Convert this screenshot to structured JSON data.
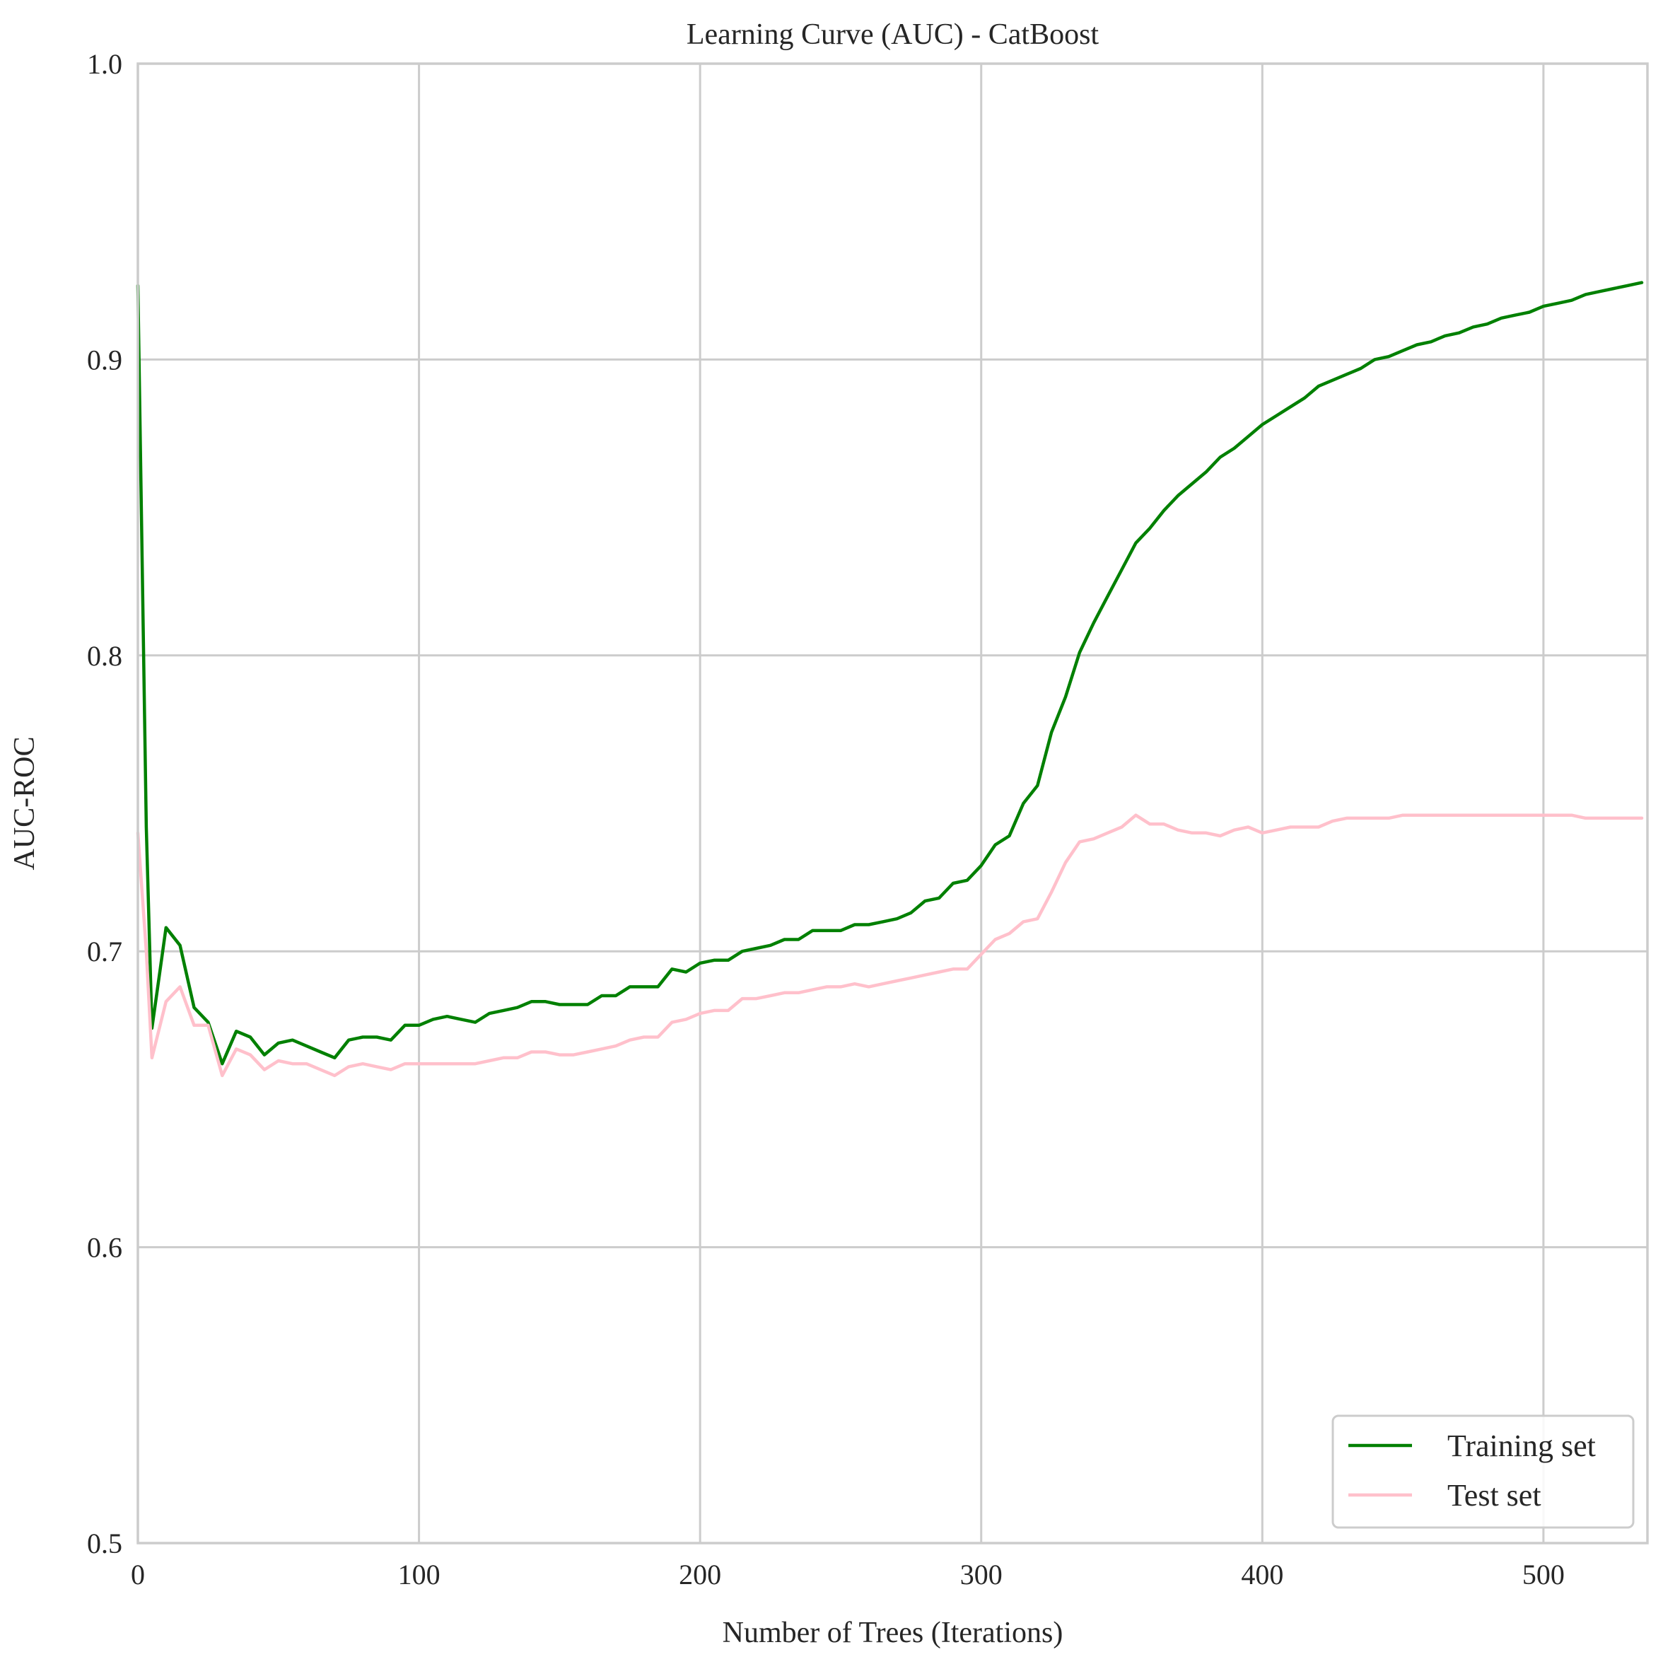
{
  "chart_data": {
    "type": "line",
    "title": "Learning Curve (AUC) - CatBoost",
    "xlabel": "Number of Trees (Iterations)",
    "ylabel": "AUC-ROC",
    "xlim": [
      0,
      537
    ],
    "ylim": [
      0.5,
      1.0
    ],
    "x_ticks": [
      0,
      100,
      200,
      300,
      400,
      500
    ],
    "y_ticks": [
      0.5,
      0.6,
      0.7,
      0.8,
      0.9,
      1.0
    ],
    "x_tick_labels": [
      "0",
      "100",
      "200",
      "300",
      "400",
      "500"
    ],
    "y_tick_labels": [
      "0.5",
      "0.6",
      "0.7",
      "0.8",
      "0.9",
      "1.0"
    ],
    "grid": true,
    "legend_position": "lower-right",
    "series": [
      {
        "name": "Training set",
        "color": "#008000",
        "points": [
          [
            0,
            0.925
          ],
          [
            3,
            0.742
          ],
          [
            5,
            0.674
          ],
          [
            10,
            0.708
          ],
          [
            15,
            0.702
          ],
          [
            20,
            0.681
          ],
          [
            25,
            0.676
          ],
          [
            30,
            0.662
          ],
          [
            35,
            0.673
          ],
          [
            40,
            0.671
          ],
          [
            45,
            0.665
          ],
          [
            50,
            0.669
          ],
          [
            55,
            0.67
          ],
          [
            60,
            0.668
          ],
          [
            65,
            0.666
          ],
          [
            70,
            0.664
          ],
          [
            75,
            0.67
          ],
          [
            80,
            0.671
          ],
          [
            85,
            0.671
          ],
          [
            90,
            0.67
          ],
          [
            95,
            0.675
          ],
          [
            100,
            0.675
          ],
          [
            105,
            0.677
          ],
          [
            110,
            0.678
          ],
          [
            115,
            0.677
          ],
          [
            120,
            0.676
          ],
          [
            125,
            0.679
          ],
          [
            130,
            0.68
          ],
          [
            135,
            0.681
          ],
          [
            140,
            0.683
          ],
          [
            145,
            0.683
          ],
          [
            150,
            0.682
          ],
          [
            155,
            0.682
          ],
          [
            160,
            0.682
          ],
          [
            165,
            0.685
          ],
          [
            170,
            0.685
          ],
          [
            175,
            0.688
          ],
          [
            180,
            0.688
          ],
          [
            185,
            0.688
          ],
          [
            190,
            0.694
          ],
          [
            195,
            0.693
          ],
          [
            200,
            0.696
          ],
          [
            205,
            0.697
          ],
          [
            210,
            0.697
          ],
          [
            215,
            0.7
          ],
          [
            220,
            0.701
          ],
          [
            225,
            0.702
          ],
          [
            230,
            0.704
          ],
          [
            235,
            0.704
          ],
          [
            240,
            0.707
          ],
          [
            245,
            0.707
          ],
          [
            250,
            0.707
          ],
          [
            255,
            0.709
          ],
          [
            260,
            0.709
          ],
          [
            265,
            0.71
          ],
          [
            270,
            0.711
          ],
          [
            275,
            0.713
          ],
          [
            280,
            0.717
          ],
          [
            285,
            0.718
          ],
          [
            290,
            0.723
          ],
          [
            295,
            0.724
          ],
          [
            300,
            0.729
          ],
          [
            305,
            0.736
          ],
          [
            310,
            0.739
          ],
          [
            315,
            0.75
          ],
          [
            320,
            0.756
          ],
          [
            325,
            0.774
          ],
          [
            330,
            0.786
          ],
          [
            335,
            0.801
          ],
          [
            340,
            0.811
          ],
          [
            345,
            0.82
          ],
          [
            350,
            0.829
          ],
          [
            355,
            0.838
          ],
          [
            360,
            0.843
          ],
          [
            365,
            0.849
          ],
          [
            370,
            0.854
          ],
          [
            375,
            0.858
          ],
          [
            380,
            0.862
          ],
          [
            385,
            0.867
          ],
          [
            390,
            0.87
          ],
          [
            395,
            0.874
          ],
          [
            400,
            0.878
          ],
          [
            405,
            0.881
          ],
          [
            410,
            0.884
          ],
          [
            415,
            0.887
          ],
          [
            420,
            0.891
          ],
          [
            425,
            0.893
          ],
          [
            430,
            0.895
          ],
          [
            435,
            0.897
          ],
          [
            440,
            0.9
          ],
          [
            445,
            0.901
          ],
          [
            450,
            0.903
          ],
          [
            455,
            0.905
          ],
          [
            460,
            0.906
          ],
          [
            465,
            0.908
          ],
          [
            470,
            0.909
          ],
          [
            475,
            0.911
          ],
          [
            480,
            0.912
          ],
          [
            485,
            0.914
          ],
          [
            490,
            0.915
          ],
          [
            495,
            0.916
          ],
          [
            500,
            0.918
          ],
          [
            505,
            0.919
          ],
          [
            510,
            0.92
          ],
          [
            515,
            0.922
          ],
          [
            520,
            0.923
          ],
          [
            525,
            0.924
          ],
          [
            530,
            0.925
          ],
          [
            535,
            0.926
          ]
        ]
      },
      {
        "name": "Test set",
        "color": "#ffc0cb",
        "points": [
          [
            0,
            0.74
          ],
          [
            3,
            0.7
          ],
          [
            5,
            0.664
          ],
          [
            10,
            0.683
          ],
          [
            15,
            0.688
          ],
          [
            20,
            0.675
          ],
          [
            25,
            0.675
          ],
          [
            30,
            0.658
          ],
          [
            35,
            0.667
          ],
          [
            40,
            0.665
          ],
          [
            45,
            0.66
          ],
          [
            50,
            0.663
          ],
          [
            55,
            0.662
          ],
          [
            60,
            0.662
          ],
          [
            65,
            0.66
          ],
          [
            70,
            0.658
          ],
          [
            75,
            0.661
          ],
          [
            80,
            0.662
          ],
          [
            85,
            0.661
          ],
          [
            90,
            0.66
          ],
          [
            95,
            0.662
          ],
          [
            100,
            0.662
          ],
          [
            105,
            0.662
          ],
          [
            110,
            0.662
          ],
          [
            115,
            0.662
          ],
          [
            120,
            0.662
          ],
          [
            125,
            0.663
          ],
          [
            130,
            0.664
          ],
          [
            135,
            0.664
          ],
          [
            140,
            0.666
          ],
          [
            145,
            0.666
          ],
          [
            150,
            0.665
          ],
          [
            155,
            0.665
          ],
          [
            160,
            0.666
          ],
          [
            165,
            0.667
          ],
          [
            170,
            0.668
          ],
          [
            175,
            0.67
          ],
          [
            180,
            0.671
          ],
          [
            185,
            0.671
          ],
          [
            190,
            0.676
          ],
          [
            195,
            0.677
          ],
          [
            200,
            0.679
          ],
          [
            205,
            0.68
          ],
          [
            210,
            0.68
          ],
          [
            215,
            0.684
          ],
          [
            220,
            0.684
          ],
          [
            225,
            0.685
          ],
          [
            230,
            0.686
          ],
          [
            235,
            0.686
          ],
          [
            240,
            0.687
          ],
          [
            245,
            0.688
          ],
          [
            250,
            0.688
          ],
          [
            255,
            0.689
          ],
          [
            260,
            0.688
          ],
          [
            265,
            0.689
          ],
          [
            270,
            0.69
          ],
          [
            275,
            0.691
          ],
          [
            280,
            0.692
          ],
          [
            285,
            0.693
          ],
          [
            290,
            0.694
          ],
          [
            295,
            0.694
          ],
          [
            300,
            0.699
          ],
          [
            305,
            0.704
          ],
          [
            310,
            0.706
          ],
          [
            315,
            0.71
          ],
          [
            320,
            0.711
          ],
          [
            325,
            0.72
          ],
          [
            330,
            0.73
          ],
          [
            335,
            0.737
          ],
          [
            340,
            0.738
          ],
          [
            345,
            0.74
          ],
          [
            350,
            0.742
          ],
          [
            355,
            0.746
          ],
          [
            360,
            0.743
          ],
          [
            365,
            0.743
          ],
          [
            370,
            0.741
          ],
          [
            375,
            0.74
          ],
          [
            380,
            0.74
          ],
          [
            385,
            0.739
          ],
          [
            390,
            0.741
          ],
          [
            395,
            0.742
          ],
          [
            400,
            0.74
          ],
          [
            405,
            0.741
          ],
          [
            410,
            0.742
          ],
          [
            415,
            0.742
          ],
          [
            420,
            0.742
          ],
          [
            425,
            0.744
          ],
          [
            430,
            0.745
          ],
          [
            435,
            0.745
          ],
          [
            440,
            0.745
          ],
          [
            445,
            0.745
          ],
          [
            450,
            0.746
          ],
          [
            455,
            0.746
          ],
          [
            460,
            0.746
          ],
          [
            465,
            0.746
          ],
          [
            470,
            0.746
          ],
          [
            475,
            0.746
          ],
          [
            480,
            0.746
          ],
          [
            485,
            0.746
          ],
          [
            490,
            0.746
          ],
          [
            495,
            0.746
          ],
          [
            500,
            0.746
          ],
          [
            505,
            0.746
          ],
          [
            510,
            0.746
          ],
          [
            515,
            0.745
          ],
          [
            520,
            0.745
          ],
          [
            525,
            0.745
          ],
          [
            530,
            0.745
          ],
          [
            535,
            0.745
          ]
        ]
      }
    ]
  }
}
